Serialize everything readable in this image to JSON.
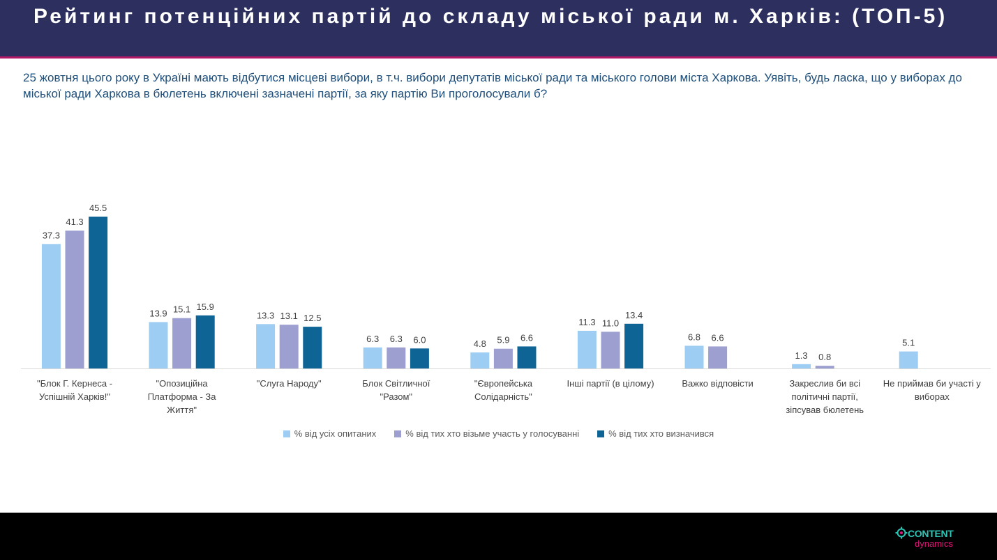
{
  "header": {
    "title": "Рейтинг потенційних партій до складу міської ради м. Харків: (ТОП-5)"
  },
  "question": "25 жовтня цього року в Україні мають відбутися місцеві вибори, в т.ч. вибори депутатів міської ради та міського голови міста Харкова. Уявіть, будь ласка, що у виборах до міської ради Харкова в бюлетень включені зазначені партії, за яку партію Ви проголосували б?",
  "logo": {
    "line1": "CONTENT",
    "line2": "dynamics",
    "icon": "gear-icon"
  },
  "colors": {
    "header_bg": "#2d2f5e",
    "header_accent": "#b5176b",
    "question_text": "#1f4e79"
  },
  "chart_data": {
    "type": "bar",
    "categories": [
      "\"Блок Г. Кернеса - Успішній Харків!\"",
      "\"Опозиційна Платформа - За Життя\"",
      "\"Слуга Народу\"",
      "Блок Світличної \"Разом\"",
      "\"Європейська Солідарність\"",
      "Інші партії (в цілому)",
      "Важко відповісти",
      "Закреслив би всі політичні партії, зіпсував бюлетень",
      "Не приймав би участі у виборах"
    ],
    "series": [
      {
        "name": "% від усіх опитаних",
        "color": "#9dcdf2",
        "values": [
          37.3,
          13.9,
          13.3,
          6.3,
          4.8,
          11.3,
          6.8,
          1.3,
          5.1
        ]
      },
      {
        "name": "% від тих хто візьме участь у голосуванні",
        "color": "#9d9fd1",
        "values": [
          41.3,
          15.1,
          13.1,
          6.3,
          5.9,
          11.0,
          6.6,
          0.8,
          null
        ]
      },
      {
        "name": "% від тих хто визначився",
        "color": "#0f6496",
        "values": [
          45.5,
          15.9,
          12.5,
          6.0,
          6.6,
          13.4,
          null,
          null,
          null
        ]
      }
    ],
    "data_labels": [
      [
        "37.3",
        "13.9",
        "13.3",
        "6.3",
        "4.8",
        "11.3",
        "6.8",
        "1.3",
        "5.1"
      ],
      [
        "41.3",
        "15.1",
        "13.1",
        "6.3",
        "5.9",
        "11.0",
        "6.6",
        "0.8",
        null
      ],
      [
        "45.5",
        "15.9",
        "12.5",
        "6.0",
        "6.6",
        "13.4",
        null,
        null,
        null
      ]
    ],
    "title": "",
    "xlabel": "",
    "ylabel": "",
    "ylim": [
      0,
      50
    ],
    "grid": false,
    "legend_position": "bottom"
  }
}
